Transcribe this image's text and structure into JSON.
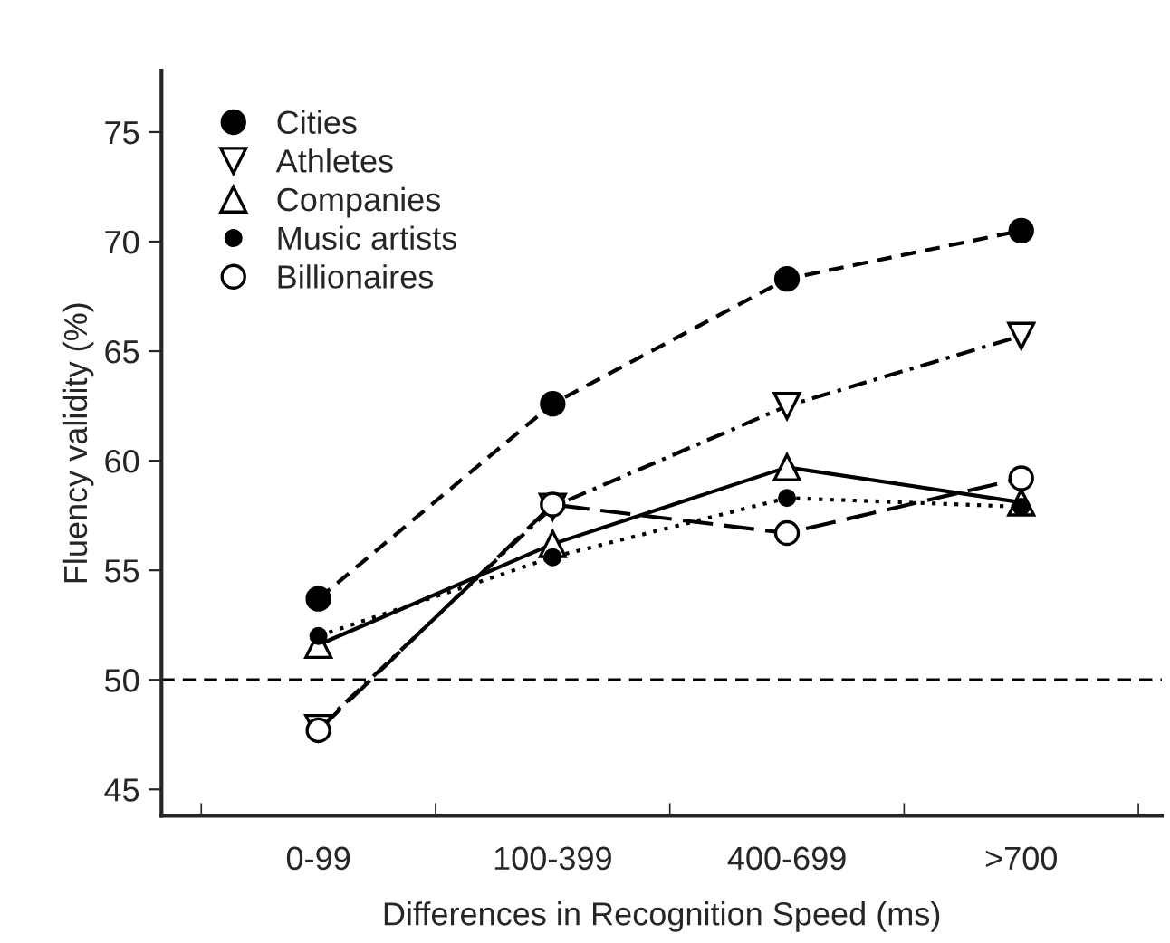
{
  "chart_data": {
    "type": "line",
    "xlabel": "Differences in Recognition Speed (ms)",
    "ylabel": "Fluency validity (%)",
    "categories": [
      "0-99",
      "100-399",
      "400-699",
      ">700"
    ],
    "ylim": [
      43.8,
      77.8
    ],
    "yticks": [
      45,
      50,
      55,
      60,
      65,
      70,
      75
    ],
    "grid": false,
    "legend": "top left",
    "series": [
      {
        "name": "Cities",
        "color": "#000000",
        "values": [
          53.7,
          62.6,
          68.3,
          70.5
        ],
        "marker": "circle",
        "line_style": "dashed"
      },
      {
        "name": "Athletes",
        "color": "#000000",
        "values": [
          47.8,
          57.9,
          62.5,
          65.7
        ],
        "marker": "triangle-down-open",
        "line_style": "dashdot"
      },
      {
        "name": "Companies",
        "color": "#000000",
        "values": [
          51.6,
          56.2,
          59.7,
          58.1
        ],
        "marker": "triangle-open",
        "line_style": "solid"
      },
      {
        "name": "Music artists",
        "color": "#000000",
        "values": [
          52.0,
          55.6,
          58.3,
          57.9
        ],
        "marker": "point",
        "line_style": "dotted"
      },
      {
        "name": "Billionaires",
        "color": "#000000",
        "values": [
          47.7,
          58.0,
          56.7,
          59.2
        ],
        "marker": "circle-open",
        "line_style": "longdash"
      }
    ],
    "ref_lines": [
      {
        "axis": "y",
        "value": 50,
        "color": "#000000",
        "line_style": "dashed"
      }
    ]
  }
}
